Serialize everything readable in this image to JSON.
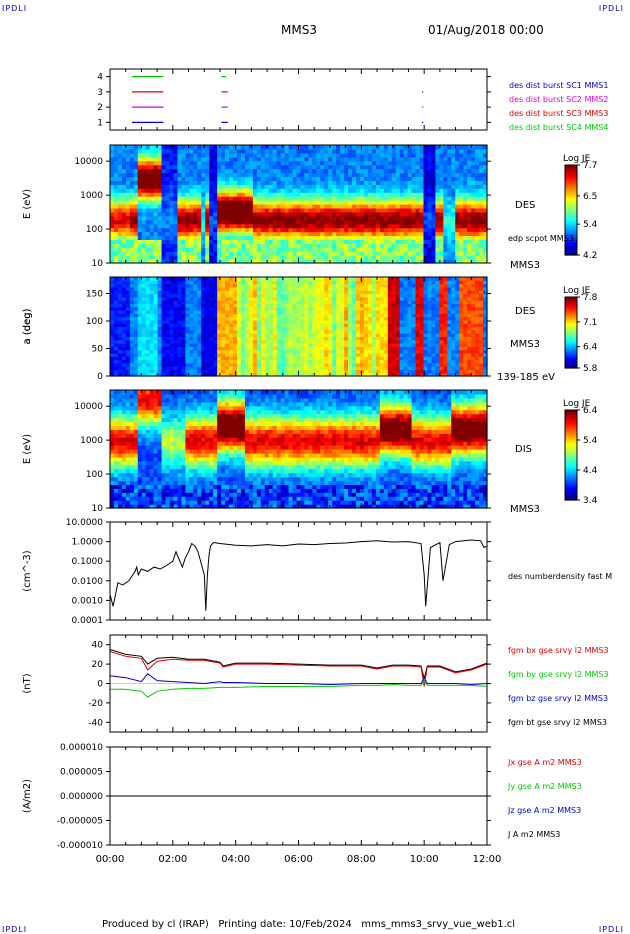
{
  "corner_label": "IPDLI",
  "header": {
    "spacecraft": "MMS3",
    "datetime": "01/Aug/2018 00:00"
  },
  "footer": "Produced by cl (IRAP)   Printing date: 10/Feb/2024   mms_mms3_srvy_vue_web1.cl",
  "chart_data": [
    {
      "type": "line",
      "panel": "availability",
      "yticks": [
        "1",
        "2",
        "3",
        "4"
      ],
      "ylim": [
        0.5,
        4.5
      ],
      "legend": [
        {
          "label": "des dist burst SC1 MMS1",
          "color": "#0000c8"
        },
        {
          "label": "des dist burst SC2 MMS2",
          "color": "#d800d8"
        },
        {
          "label": "des dist burst SC3 MMS3",
          "color": "#e00000"
        },
        {
          "label": "des dist burst SC4 MMS4",
          "color": "#00c800"
        }
      ],
      "segments": [
        {
          "level": 4,
          "color": "#00c800",
          "from": 0.7,
          "to": 1.7
        },
        {
          "level": 4,
          "color": "#00c800",
          "from": 3.55,
          "to": 3.7
        },
        {
          "level": 3,
          "color": "#e00000",
          "from": 0.7,
          "to": 1.7
        },
        {
          "level": 3,
          "color": "#e00000",
          "from": 3.55,
          "to": 3.75
        },
        {
          "level": 3,
          "color": "#e00000",
          "from": 9.93,
          "to": 9.97
        },
        {
          "level": 2,
          "color": "#d800d8",
          "from": 0.7,
          "to": 1.7
        },
        {
          "level": 2,
          "color": "#d800d8",
          "from": 3.55,
          "to": 3.75
        },
        {
          "level": 2,
          "color": "#d800d8",
          "from": 9.93,
          "to": 9.97
        },
        {
          "level": 1,
          "color": "#0000c8",
          "from": 0.7,
          "to": 1.7
        },
        {
          "level": 1,
          "color": "#0000c8",
          "from": 3.55,
          "to": 3.75
        },
        {
          "level": 1,
          "color": "#0000c8",
          "from": 9.93,
          "to": 9.97
        }
      ]
    },
    {
      "type": "heatmap",
      "panel": "des-energy",
      "ylabel": "E (eV)",
      "yscale": "log",
      "ylim": [
        10,
        30000
      ],
      "yticks": [
        "10",
        "100",
        "1000",
        "10000"
      ],
      "label": "DES",
      "right_labels": [
        "edp scpot MMS3",
        "MMS3"
      ],
      "colorbar": {
        "title": "Log JE",
        "ticks": [
          "7.7",
          "6.5",
          "5.4",
          "4.2"
        ],
        "range": [
          4.2,
          7.7
        ]
      }
    },
    {
      "type": "heatmap",
      "panel": "des-pitch",
      "ylabel": "a (deg)",
      "ylim": [
        0,
        180
      ],
      "yticks": [
        "0",
        "50",
        "100",
        "150"
      ],
      "label": "DES",
      "right_labels": [
        "MMS3",
        "139-185 eV"
      ],
      "colorbar": {
        "title": "Log JE",
        "ticks": [
          "7.8",
          "7.1",
          "6.4",
          "5.8"
        ],
        "range": [
          5.8,
          7.8
        ]
      }
    },
    {
      "type": "heatmap",
      "panel": "dis-energy",
      "ylabel": "E (eV)",
      "yscale": "log",
      "ylim": [
        10,
        30000
      ],
      "yticks": [
        "10",
        "100",
        "1000",
        "10000"
      ],
      "label": "DIS",
      "right_labels": [
        "MMS3"
      ],
      "colorbar": {
        "title": "Log JE",
        "ticks": [
          "6.4",
          "5.4",
          "4.4",
          "3.4"
        ],
        "range": [
          3.4,
          6.4
        ]
      }
    },
    {
      "type": "line",
      "panel": "density",
      "ylabel": "(cm^-3)",
      "yscale": "log",
      "ylim": [
        0.0001,
        10
      ],
      "yticks": [
        "0.0001",
        "0.0010",
        "0.0100",
        "0.1000",
        "1.0000",
        "10.0000"
      ],
      "series": [
        {
          "name": "des numberdensity fast M",
          "color": "#000000",
          "x": [
            0,
            0.1,
            0.25,
            0.4,
            0.6,
            0.8,
            0.85,
            0.9,
            1.0,
            1.2,
            1.4,
            1.6,
            1.8,
            2.0,
            2.1,
            2.3,
            2.4,
            2.5,
            2.6,
            2.7,
            2.8,
            3.0,
            3.05,
            3.1,
            3.15,
            3.2,
            3.3,
            3.5,
            4.0,
            4.5,
            5.0,
            5.5,
            6.0,
            6.5,
            7.0,
            7.5,
            8.0,
            8.5,
            9.0,
            9.5,
            9.9,
            10.0,
            10.05,
            10.2,
            10.5,
            10.6,
            10.8,
            11.0,
            11.5,
            11.8,
            11.9,
            12.0
          ],
          "y": [
            0.002,
            0.0005,
            0.008,
            0.006,
            0.01,
            0.03,
            0.05,
            0.02,
            0.04,
            0.03,
            0.05,
            0.04,
            0.06,
            0.1,
            0.3,
            0.05,
            0.15,
            0.3,
            0.8,
            0.6,
            0.3,
            0.02,
            0.0003,
            0.02,
            0.2,
            0.6,
            0.9,
            0.8,
            0.65,
            0.6,
            0.7,
            0.6,
            0.75,
            0.7,
            0.8,
            0.85,
            1.0,
            1.1,
            0.95,
            1.0,
            0.8,
            0.02,
            0.0005,
            0.5,
            0.9,
            0.01,
            0.7,
            1.0,
            1.2,
            1.1,
            0.5,
            0.6
          ]
        }
      ]
    },
    {
      "type": "line",
      "panel": "magnetic-field",
      "ylabel": "(nT)",
      "ylim": [
        -50,
        50
      ],
      "yticks": [
        "-40",
        "-20",
        "0",
        "20",
        "40"
      ],
      "x": [
        0,
        0.5,
        1.0,
        1.2,
        1.5,
        2.0,
        2.5,
        3.0,
        3.5,
        3.6,
        4.0,
        5.0,
        6.0,
        7.0,
        8.0,
        8.5,
        9.0,
        9.5,
        9.9,
        10.0,
        10.1,
        10.5,
        11.0,
        11.5,
        12.0
      ],
      "series": [
        {
          "name": "fgm bt gse srvy l2 MMS3",
          "color": "#000000",
          "values": [
            35,
            30,
            28,
            20,
            26,
            27,
            25,
            25,
            22,
            18,
            21,
            21,
            20,
            19,
            19,
            16,
            19,
            19,
            18,
            5,
            18,
            18,
            12,
            15,
            21
          ]
        },
        {
          "name": "fgm bx gse srvy l2 MMS3",
          "color": "#e00000",
          "values": [
            33,
            28,
            26,
            14,
            23,
            25,
            24,
            24,
            21,
            17,
            20,
            20,
            19,
            18,
            18,
            15,
            18,
            18,
            17,
            -3,
            17,
            17,
            11,
            14,
            20
          ]
        },
        {
          "name": "fgm bz gse srvy l2 MMS3",
          "color": "#0000c8",
          "values": [
            8,
            6,
            2,
            10,
            3,
            2,
            1,
            0,
            2,
            1,
            1,
            0,
            0,
            -1,
            0,
            0,
            0,
            0,
            0,
            6,
            0,
            0,
            0,
            -1,
            0
          ]
        },
        {
          "name": "fgm by gse srvy l2 MMS3",
          "color": "#00c800",
          "values": [
            -6,
            -6,
            -8,
            -14,
            -8,
            -6,
            -5,
            -5,
            -4,
            -4,
            -4,
            -3,
            -3,
            -3,
            -2,
            -2,
            -1,
            -2,
            -2,
            3,
            -2,
            -2,
            -2,
            -2,
            -3
          ]
        }
      ]
    },
    {
      "type": "line",
      "panel": "current-density",
      "ylabel": "(A/m2)",
      "ylim": [
        -1e-05,
        1e-05
      ],
      "yticks": [
        "-0.000010",
        "-0.000005",
        "0.000000",
        "0.000005",
        "0.000010"
      ],
      "x": [
        0,
        2,
        4,
        6,
        8,
        10,
        12
      ],
      "series": [
        {
          "name": "Jx gse A m2 MMS3",
          "color": "#e00000",
          "values": [
            0,
            0,
            0,
            0,
            0,
            0,
            0
          ]
        },
        {
          "name": "Jy gse A m2 MMS3",
          "color": "#00c800",
          "values": [
            0,
            0,
            0,
            0,
            0,
            0,
            0
          ]
        },
        {
          "name": "Jz gse A m2 MMS3",
          "color": "#0000c8",
          "values": [
            0,
            0,
            0,
            0,
            0,
            0,
            0
          ]
        },
        {
          "name": "J A m2 MMS3",
          "color": "#000000",
          "values": [
            0,
            0,
            0,
            0,
            0,
            0,
            0
          ]
        }
      ]
    }
  ],
  "time_axis": {
    "xlim": [
      0,
      12
    ],
    "ticks": [
      "00:00",
      "02:00",
      "04:00",
      "06:00",
      "08:00",
      "10:00",
      "12:00"
    ]
  }
}
